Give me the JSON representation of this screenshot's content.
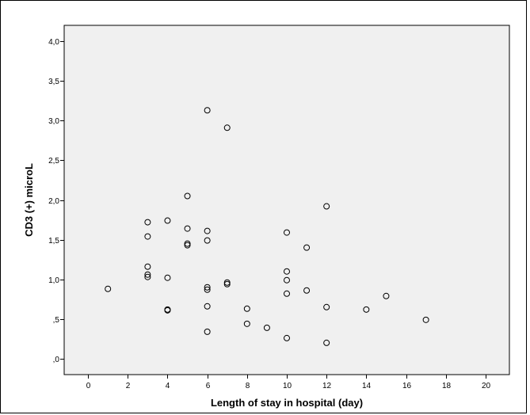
{
  "chart_data": {
    "type": "scatter",
    "title": "",
    "xlabel": "Length of stay in hospital (day)",
    "ylabel": "CD3 (+) microL",
    "xlim": [
      -1.2,
      21.2
    ],
    "ylim": [
      -0.2,
      4.2
    ],
    "x_ticks": [
      0,
      2,
      4,
      6,
      8,
      10,
      12,
      14,
      16,
      18,
      20
    ],
    "x_tick_labels": [
      "0",
      "2",
      "4",
      "6",
      "8",
      "10",
      "12",
      "14",
      "16",
      "18",
      "20"
    ],
    "y_ticks": [
      0,
      0.5,
      1.0,
      1.5,
      2.0,
      2.5,
      3.0,
      3.5,
      4.0
    ],
    "y_tick_labels": [
      ",0",
      ",5",
      "1,0",
      "1,5",
      "2,0",
      "2,5",
      "3,0",
      "3,5",
      "4,0"
    ],
    "grid": false,
    "colors": {
      "plot_background": "#f0f0f0",
      "marker_stroke": "#000000",
      "axis": "#000000"
    },
    "points": [
      {
        "x": 1,
        "y": 0.88
      },
      {
        "x": 3,
        "y": 1.72
      },
      {
        "x": 3,
        "y": 1.54
      },
      {
        "x": 3,
        "y": 1.16
      },
      {
        "x": 3,
        "y": 1.06
      },
      {
        "x": 3,
        "y": 1.03
      },
      {
        "x": 4,
        "y": 1.74
      },
      {
        "x": 4,
        "y": 1.02
      },
      {
        "x": 4,
        "y": 0.62
      },
      {
        "x": 4,
        "y": 0.61
      },
      {
        "x": 5,
        "y": 2.05
      },
      {
        "x": 5,
        "y": 1.64
      },
      {
        "x": 5,
        "y": 1.45
      },
      {
        "x": 5,
        "y": 1.43
      },
      {
        "x": 6,
        "y": 3.13
      },
      {
        "x": 6,
        "y": 1.61
      },
      {
        "x": 6,
        "y": 1.49
      },
      {
        "x": 6,
        "y": 0.9
      },
      {
        "x": 6,
        "y": 0.87
      },
      {
        "x": 6,
        "y": 0.66
      },
      {
        "x": 6,
        "y": 0.34
      },
      {
        "x": 7,
        "y": 2.91
      },
      {
        "x": 7,
        "y": 0.96
      },
      {
        "x": 7,
        "y": 0.94
      },
      {
        "x": 8,
        "y": 0.63
      },
      {
        "x": 8,
        "y": 0.44
      },
      {
        "x": 9,
        "y": 0.39
      },
      {
        "x": 10,
        "y": 1.59
      },
      {
        "x": 10,
        "y": 1.1
      },
      {
        "x": 10,
        "y": 0.99
      },
      {
        "x": 10,
        "y": 0.82
      },
      {
        "x": 10,
        "y": 0.26
      },
      {
        "x": 11,
        "y": 1.4
      },
      {
        "x": 11,
        "y": 0.86
      },
      {
        "x": 12,
        "y": 1.92
      },
      {
        "x": 12,
        "y": 0.65
      },
      {
        "x": 12,
        "y": 0.2
      },
      {
        "x": 14,
        "y": 0.62
      },
      {
        "x": 15,
        "y": 0.79
      },
      {
        "x": 17,
        "y": 0.49
      }
    ]
  }
}
